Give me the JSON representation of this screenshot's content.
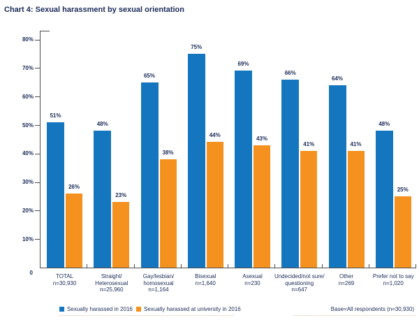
{
  "title": "Chart 4: Sexual harassment by sexual orientation",
  "colors": {
    "bar_blue": "#1476BE",
    "bar_orange": "#F5911E",
    "text_navy": "#1B2B57",
    "axis_gray": "#4D4D4D"
  },
  "chart_data": {
    "type": "bar",
    "title": "Chart 4: Sexual harassment by sexual orientation",
    "categories": [
      {
        "label_lines": [
          "TOTAL",
          "n=30,930"
        ]
      },
      {
        "label_lines": [
          "Straight/",
          "Heterosexual",
          "n=25,960"
        ]
      },
      {
        "label_lines": [
          "Gay/lesbian/",
          "homosexual",
          "n=1,164"
        ]
      },
      {
        "label_lines": [
          "Bisexual",
          "n=1,640"
        ]
      },
      {
        "label_lines": [
          "Asexual",
          "n=230"
        ]
      },
      {
        "label_lines": [
          "Undecided/not sure/",
          "questioning",
          "n=647"
        ]
      },
      {
        "label_lines": [
          "Other",
          "n=269"
        ]
      },
      {
        "label_lines": [
          "Prefer not to say",
          "n=1,020"
        ]
      }
    ],
    "series": [
      {
        "name": "Sexually harassed in 2016",
        "color_key": "bar_blue",
        "values": [
          51,
          48,
          65,
          75,
          69,
          66,
          64,
          48
        ]
      },
      {
        "name": "Sexually harassed at university in 2016",
        "color_key": "bar_orange",
        "values": [
          26,
          23,
          38,
          44,
          43,
          41,
          41,
          25
        ]
      }
    ],
    "value_label_suffix": "%",
    "xlabel": "",
    "ylabel": "",
    "ylim": [
      0,
      80
    ],
    "ytick_labels": [
      "0",
      "10%",
      "20%",
      "30%",
      "40%",
      "50%",
      "60%",
      "70%",
      "80%"
    ],
    "grid": false,
    "legend_position": "bottom-left",
    "base_note": "Base=All respondents (n=30,930)"
  }
}
